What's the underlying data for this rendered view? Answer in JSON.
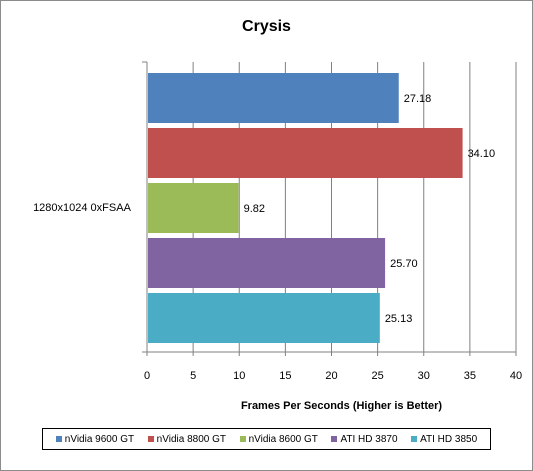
{
  "chart_data": {
    "type": "bar",
    "orientation": "horizontal",
    "title": "Crysis",
    "xlabel": "Frames Per Seconds (Higher is Better)",
    "ylabel": "",
    "categories": [
      "1280x1024 0xFSAA"
    ],
    "xlim": [
      0,
      40
    ],
    "x_ticks": [
      0,
      5,
      10,
      15,
      20,
      25,
      30,
      35,
      40
    ],
    "grid": true,
    "legend_position": "bottom",
    "series": [
      {
        "name": "nVidia 9600 GT",
        "values": [
          27.18
        ],
        "label": "27.18",
        "color": "#4f81bd"
      },
      {
        "name": "nVidia 8800 GT",
        "values": [
          34.1
        ],
        "label": "34.10",
        "color": "#c0504d"
      },
      {
        "name": "nVidia 8600 GT",
        "values": [
          9.82
        ],
        "label": "9.82",
        "color": "#9bbb59"
      },
      {
        "name": "ATI HD 3870",
        "values": [
          25.7
        ],
        "label": "25.70",
        "color": "#8064a2"
      },
      {
        "name": "ATI HD 3850",
        "values": [
          25.13
        ],
        "label": "25.13",
        "color": "#4bacc6"
      }
    ]
  }
}
